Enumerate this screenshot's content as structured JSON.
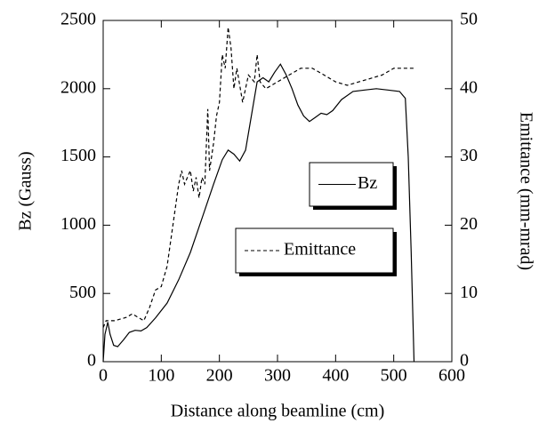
{
  "chart_data": {
    "type": "line",
    "x_label": "Distance along beamline (cm)",
    "y_label": "Bz (Gauss)",
    "y2_label": "Emittance (mm-mrad)",
    "xlim": [
      0,
      600
    ],
    "xticks": [
      0,
      100,
      200,
      300,
      400,
      500,
      600
    ],
    "ylim": [
      0,
      2500
    ],
    "yticks": [
      0,
      500,
      1000,
      1500,
      2000,
      2500
    ],
    "y2lim": [
      0,
      50
    ],
    "y2ticks": [
      0,
      10,
      20,
      30,
      40,
      50
    ],
    "series": [
      {
        "name": "Bz",
        "color": "#000000",
        "line_style": "solid",
        "axis": "y",
        "x": [
          0,
          3,
          8,
          12,
          18,
          25,
          35,
          45,
          55,
          65,
          75,
          90,
          110,
          130,
          150,
          170,
          190,
          205,
          215,
          225,
          235,
          245,
          255,
          265,
          275,
          285,
          295,
          305,
          315,
          325,
          335,
          345,
          355,
          365,
          375,
          385,
          395,
          410,
          430,
          450,
          470,
          490,
          510,
          520,
          525,
          530,
          535
        ],
        "values": [
          0,
          200,
          290,
          200,
          120,
          110,
          160,
          215,
          230,
          225,
          250,
          320,
          430,
          600,
          800,
          1050,
          1300,
          1480,
          1550,
          1520,
          1470,
          1550,
          1800,
          2050,
          2080,
          2050,
          2120,
          2180,
          2100,
          2000,
          1880,
          1800,
          1760,
          1790,
          1820,
          1810,
          1840,
          1920,
          1980,
          1990,
          2000,
          1990,
          1980,
          1930,
          1500,
          800,
          0
        ]
      },
      {
        "name": "Emittance",
        "color": "#000000",
        "line_style": "dashed",
        "axis": "y2",
        "x": [
          0,
          5,
          20,
          40,
          50,
          60,
          70,
          80,
          90,
          100,
          110,
          120,
          130,
          135,
          140,
          145,
          150,
          155,
          160,
          165,
          170,
          175,
          180,
          183,
          190,
          195,
          200,
          205,
          210,
          215,
          220,
          225,
          230,
          240,
          250,
          260,
          265,
          270,
          280,
          300,
          320,
          340,
          360,
          380,
          400,
          420,
          440,
          460,
          480,
          500,
          520,
          535
        ],
        "values": [
          5,
          6,
          6,
          6.5,
          7,
          6.5,
          6,
          8,
          10.5,
          11,
          14,
          20,
          26,
          28,
          26,
          27,
          28,
          25,
          27,
          24,
          27,
          26,
          37,
          28,
          32,
          36,
          38,
          45,
          43,
          49,
          46,
          40,
          43,
          38,
          42,
          41,
          45,
          41,
          40,
          41,
          42,
          43,
          43,
          42,
          41,
          40.5,
          41,
          41.5,
          42,
          43,
          43,
          43
        ]
      }
    ]
  }
}
